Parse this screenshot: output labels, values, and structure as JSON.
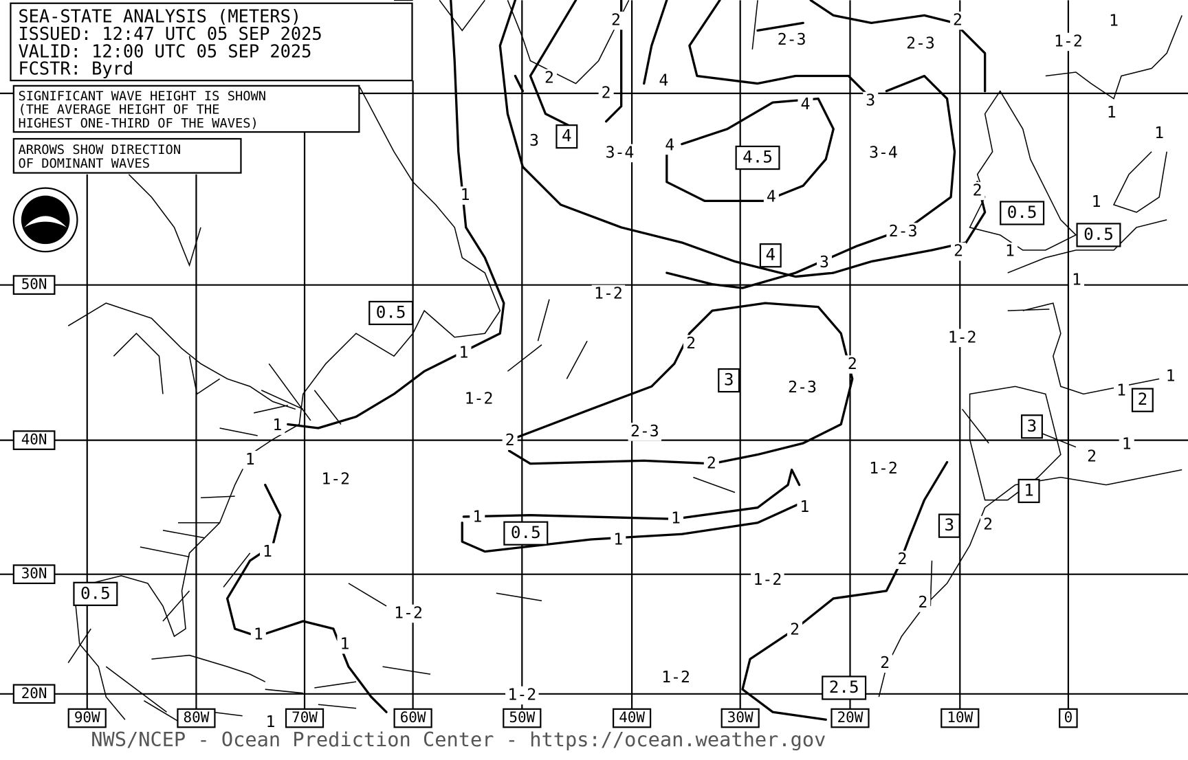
{
  "header": {
    "lines": [
      "SEA-STATE ANALYSIS (METERS)",
      "ISSUED:  12:47 UTC 05 SEP 2025",
      "VALID:   12:00 UTC 05 SEP 2025",
      "FCSTR:   Byrd"
    ]
  },
  "notes": {
    "wave_height": [
      "SIGNIFICANT WAVE HEIGHT IS SHOWN",
      "(THE AVERAGE HEIGHT OF THE",
      "HIGHEST ONE-THIRD OF THE WAVES)"
    ],
    "arrows": [
      "ARROWS SHOW DIRECTION",
      "OF DOMINANT WAVES"
    ]
  },
  "latitudes": [
    "50N",
    "40N",
    "30N",
    "20N"
  ],
  "longitudes": [
    "90W",
    "80W",
    "70W",
    "60W",
    "50W",
    "40W",
    "30W",
    "20W",
    "10W",
    "0"
  ],
  "contour_labels": [
    "2",
    "2",
    "2",
    "4",
    "2-3",
    "2-3",
    "2",
    "1-2",
    "1",
    "3",
    "3-4",
    "4",
    "4",
    "3",
    "3-4",
    "1",
    "1",
    "1",
    "4",
    "2-3",
    "2",
    "3",
    "1",
    "2",
    "1-2",
    "1",
    "1",
    "1-2",
    "1",
    "2",
    "2",
    "2-3",
    "1-2",
    "1",
    "2",
    "2-3",
    "2",
    "1-2",
    "1-2",
    "1",
    "1",
    "1",
    "1",
    "2",
    "1",
    "1",
    "1",
    "1",
    "2",
    "1",
    "2",
    "1-2",
    "2",
    "1-2",
    "2",
    "1",
    "1",
    "2",
    "1-2",
    "1-2",
    "1"
  ],
  "boxed_labels": [
    "4",
    "4.5",
    "4",
    "0.5",
    "0.5",
    "0.5",
    "3",
    "2",
    "3",
    "1",
    "0.5",
    "3",
    "0.5",
    "2.5"
  ],
  "footer": "NWS/NCEP - Ocean Prediction Center - https://ocean.weather.gov"
}
